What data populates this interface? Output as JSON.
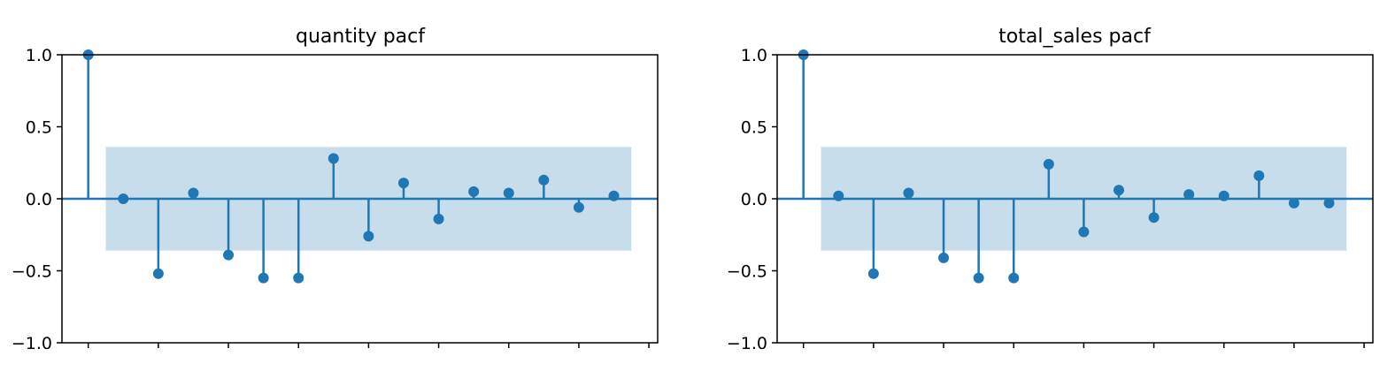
{
  "chart_data": [
    {
      "type": "stem",
      "title": "quantity pacf",
      "xlabel": "",
      "ylabel": "",
      "x": [
        0,
        1,
        2,
        3,
        4,
        5,
        6,
        7,
        8,
        9,
        10,
        11,
        12,
        13,
        14,
        15
      ],
      "values": [
        1.0,
        0.0,
        -0.52,
        0.04,
        -0.39,
        -0.55,
        -0.55,
        0.28,
        -0.26,
        0.11,
        -0.14,
        0.05,
        0.04,
        0.13,
        -0.06,
        0.02
      ],
      "confidence_band": [
        -0.36,
        0.36
      ],
      "ylim": [
        -1.0,
        1.0
      ],
      "xlim": [
        -0.75,
        16.25
      ],
      "yticks": [
        -1.0,
        -0.5,
        0.0,
        0.5,
        1.0
      ],
      "ytick_labels": [
        "−1.0",
        "−0.5",
        "0.0",
        "0.5",
        "1.0"
      ],
      "xticks": [
        0,
        2,
        4,
        6,
        8,
        10,
        12,
        14,
        16
      ]
    },
    {
      "type": "stem",
      "title": "total_sales pacf",
      "xlabel": "",
      "ylabel": "",
      "x": [
        0,
        1,
        2,
        3,
        4,
        5,
        6,
        7,
        8,
        9,
        10,
        11,
        12,
        13,
        14,
        15
      ],
      "values": [
        1.0,
        0.02,
        -0.52,
        0.04,
        -0.41,
        -0.55,
        -0.55,
        0.24,
        -0.23,
        0.06,
        -0.13,
        0.03,
        0.02,
        0.16,
        -0.03,
        -0.03
      ],
      "confidence_band": [
        -0.36,
        0.36
      ],
      "ylim": [
        -1.0,
        1.0
      ],
      "xlim": [
        -0.75,
        16.25
      ],
      "yticks": [
        -1.0,
        -0.5,
        0.0,
        0.5,
        1.0
      ],
      "ytick_labels": [
        "−1.0",
        "−0.5",
        "0.0",
        "0.5",
        "1.0"
      ],
      "xticks": [
        0,
        2,
        4,
        6,
        8,
        10,
        12,
        14,
        16
      ]
    }
  ],
  "colors": {
    "series": "#1f77b4",
    "band": "#1f77b4",
    "axes": "#000000"
  }
}
